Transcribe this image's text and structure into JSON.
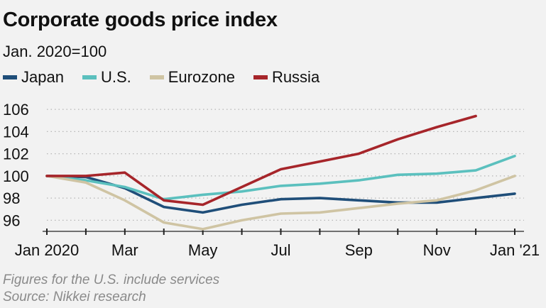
{
  "chart_data": {
    "type": "line",
    "title": "Corporate goods price index",
    "subtitle": "Jan. 2020=100",
    "xlabel": "",
    "ylabel": "",
    "ylim": [
      95,
      107
    ],
    "yticks": [
      96,
      98,
      100,
      102,
      104,
      106
    ],
    "x": [
      0,
      1,
      2,
      3,
      4,
      5,
      6,
      7,
      8,
      9,
      10,
      11,
      12
    ],
    "xtick_labels": [
      {
        "x": 0,
        "label": "Jan 2020"
      },
      {
        "x": 2,
        "label": "Mar"
      },
      {
        "x": 4,
        "label": "May"
      },
      {
        "x": 6,
        "label": "Jul"
      },
      {
        "x": 8,
        "label": "Sep"
      },
      {
        "x": 10,
        "label": "Nov"
      },
      {
        "x": 12,
        "label": "Jan '21"
      }
    ],
    "grid": "horizontal dotted",
    "series": [
      {
        "name": "Japan",
        "color": "#1f4e79",
        "values": [
          100,
          99.9,
          98.9,
          97.2,
          96.7,
          97.4,
          97.9,
          98.0,
          97.8,
          97.6,
          97.6,
          98.0,
          98.4
        ]
      },
      {
        "name": "U.S.",
        "color": "#5bc0be",
        "values": [
          100,
          99.6,
          99.0,
          97.9,
          98.3,
          98.6,
          99.1,
          99.3,
          99.6,
          100.1,
          100.2,
          100.5,
          101.8
        ]
      },
      {
        "name": "Eurozone",
        "color": "#cfc4a3",
        "values": [
          100,
          99.4,
          97.8,
          95.8,
          95.2,
          96.0,
          96.6,
          96.7,
          97.1,
          97.5,
          97.8,
          98.7,
          100.0
        ]
      },
      {
        "name": "Russia",
        "color": "#a6252a",
        "values": [
          100,
          100.0,
          100.3,
          97.8,
          97.4,
          99.0,
          100.6,
          101.3,
          102.0,
          103.3,
          104.4,
          105.4,
          null
        ]
      }
    ]
  },
  "notes": {
    "line1": "Figures for the U.S. include services",
    "line2": "Source: Nikkei research"
  }
}
